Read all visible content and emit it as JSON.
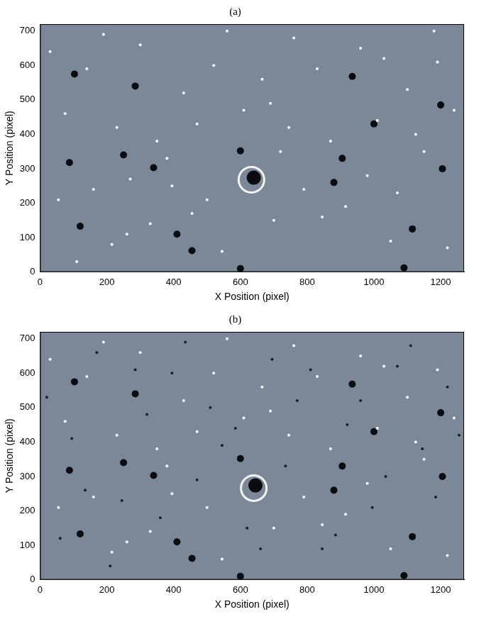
{
  "chart_data": [
    {
      "type": "scatter",
      "title": "(a)",
      "x_label": "X Position (pixel)",
      "y_label": "Y Position (pixel)",
      "xlim": [
        0,
        1270
      ],
      "ylim": [
        0,
        720
      ],
      "xticks": [
        0,
        200,
        400,
        600,
        800,
        1000,
        1200
      ],
      "yticks": [
        0,
        100,
        200,
        300,
        400,
        500,
        600,
        700
      ],
      "grid": false,
      "tick_labels": true,
      "series": [
        {
          "color": "#ffffff",
          "marker": "dot",
          "x": [
            30,
            75,
            140,
            190,
            230,
            260,
            300,
            350,
            395,
            430,
            470,
            520,
            560,
            610,
            665,
            700,
            745,
            790,
            830,
            870,
            915,
            960,
            1010,
            1050,
            1100,
            1150,
            1190,
            1240,
            55,
            160,
            215,
            330,
            380,
            500,
            545,
            690,
            760,
            845,
            980,
            1030,
            1125,
            1220,
            110,
            270,
            455,
            720,
            1070,
            1180
          ],
          "y": [
            640,
            460,
            590,
            690,
            420,
            110,
            660,
            380,
            250,
            520,
            430,
            600,
            700,
            470,
            560,
            150,
            420,
            240,
            590,
            380,
            190,
            650,
            440,
            90,
            530,
            350,
            610,
            470,
            210,
            240,
            80,
            140,
            330,
            210,
            60,
            490,
            680,
            160,
            280,
            620,
            400,
            70,
            30,
            270,
            170,
            350,
            230,
            700
          ]
        },
        {
          "color": "#0a0c10",
          "marker": "circle",
          "x": [
            600,
            880,
            935,
            455,
            88,
            103,
            600,
            1090,
            905,
            1115,
            120,
            1200,
            285,
            340,
            1205,
            410,
            250,
            1000
          ],
          "y": [
            352,
            260,
            568,
            62,
            318,
            575,
            10,
            12,
            330,
            125,
            133,
            485,
            540,
            303,
            300,
            110,
            340,
            430
          ]
        },
        {
          "color": "#f4f4f4",
          "marker": "ring",
          "x": [
            633
          ],
          "y": [
            268
          ]
        },
        {
          "color": "#0a0c10",
          "marker": "disc",
          "x": [
            640
          ],
          "y": [
            274
          ]
        }
      ]
    },
    {
      "type": "scatter",
      "title": "(b)",
      "x_label": "X Position (pixel)",
      "y_label": "Y Position (pixel)",
      "xlim": [
        0,
        1270
      ],
      "ylim": [
        0,
        720
      ],
      "xticks": [
        0,
        200,
        400,
        600,
        800,
        1000,
        1200
      ],
      "yticks": [
        0,
        100,
        200,
        300,
        400,
        500,
        600,
        700
      ],
      "grid": false,
      "tick_labels": true,
      "series": [
        {
          "color": "#1a1f26",
          "marker": "dot",
          "x": [
            20,
            95,
            170,
            245,
            320,
            395,
            470,
            545,
            620,
            695,
            770,
            845,
            920,
            995,
            1070,
            1145,
            1220,
            60,
            135,
            210,
            285,
            360,
            435,
            510,
            585,
            660,
            735,
            810,
            885,
            960,
            1035,
            1110,
            1185,
            1255
          ],
          "y": [
            530,
            410,
            660,
            230,
            480,
            600,
            290,
            390,
            150,
            640,
            520,
            90,
            450,
            210,
            620,
            380,
            560,
            120,
            260,
            40,
            610,
            180,
            690,
            500,
            440,
            90,
            330,
            610,
            130,
            520,
            300,
            680,
            240,
            420
          ]
        },
        {
          "color": "#ffffff",
          "marker": "dot",
          "x": [
            30,
            75,
            140,
            190,
            230,
            260,
            300,
            350,
            395,
            430,
            470,
            520,
            560,
            610,
            665,
            700,
            745,
            790,
            830,
            870,
            915,
            960,
            1010,
            1050,
            1100,
            1150,
            1190,
            1240,
            55,
            160,
            215,
            330,
            380,
            500,
            545,
            690,
            760,
            845,
            980,
            1030,
            1125,
            1220
          ],
          "y": [
            640,
            460,
            590,
            690,
            420,
            110,
            660,
            380,
            250,
            520,
            430,
            600,
            700,
            470,
            560,
            150,
            420,
            240,
            590,
            380,
            190,
            650,
            440,
            90,
            530,
            350,
            610,
            470,
            210,
            240,
            80,
            140,
            330,
            210,
            60,
            490,
            680,
            160,
            280,
            620,
            400,
            70
          ]
        },
        {
          "color": "#0a0c10",
          "marker": "circle",
          "x": [
            600,
            880,
            935,
            455,
            88,
            103,
            600,
            1090,
            905,
            1115,
            120,
            1200,
            285,
            340,
            1205,
            410,
            250,
            1000
          ],
          "y": [
            352,
            260,
            568,
            62,
            318,
            575,
            10,
            12,
            330,
            125,
            133,
            485,
            540,
            303,
            300,
            110,
            340,
            430
          ]
        },
        {
          "color": "#f4f4f4",
          "marker": "ring",
          "x": [
            640
          ],
          "y": [
            266
          ]
        },
        {
          "color": "#0a0c10",
          "marker": "disc",
          "x": [
            645
          ],
          "y": [
            274
          ]
        }
      ]
    }
  ]
}
